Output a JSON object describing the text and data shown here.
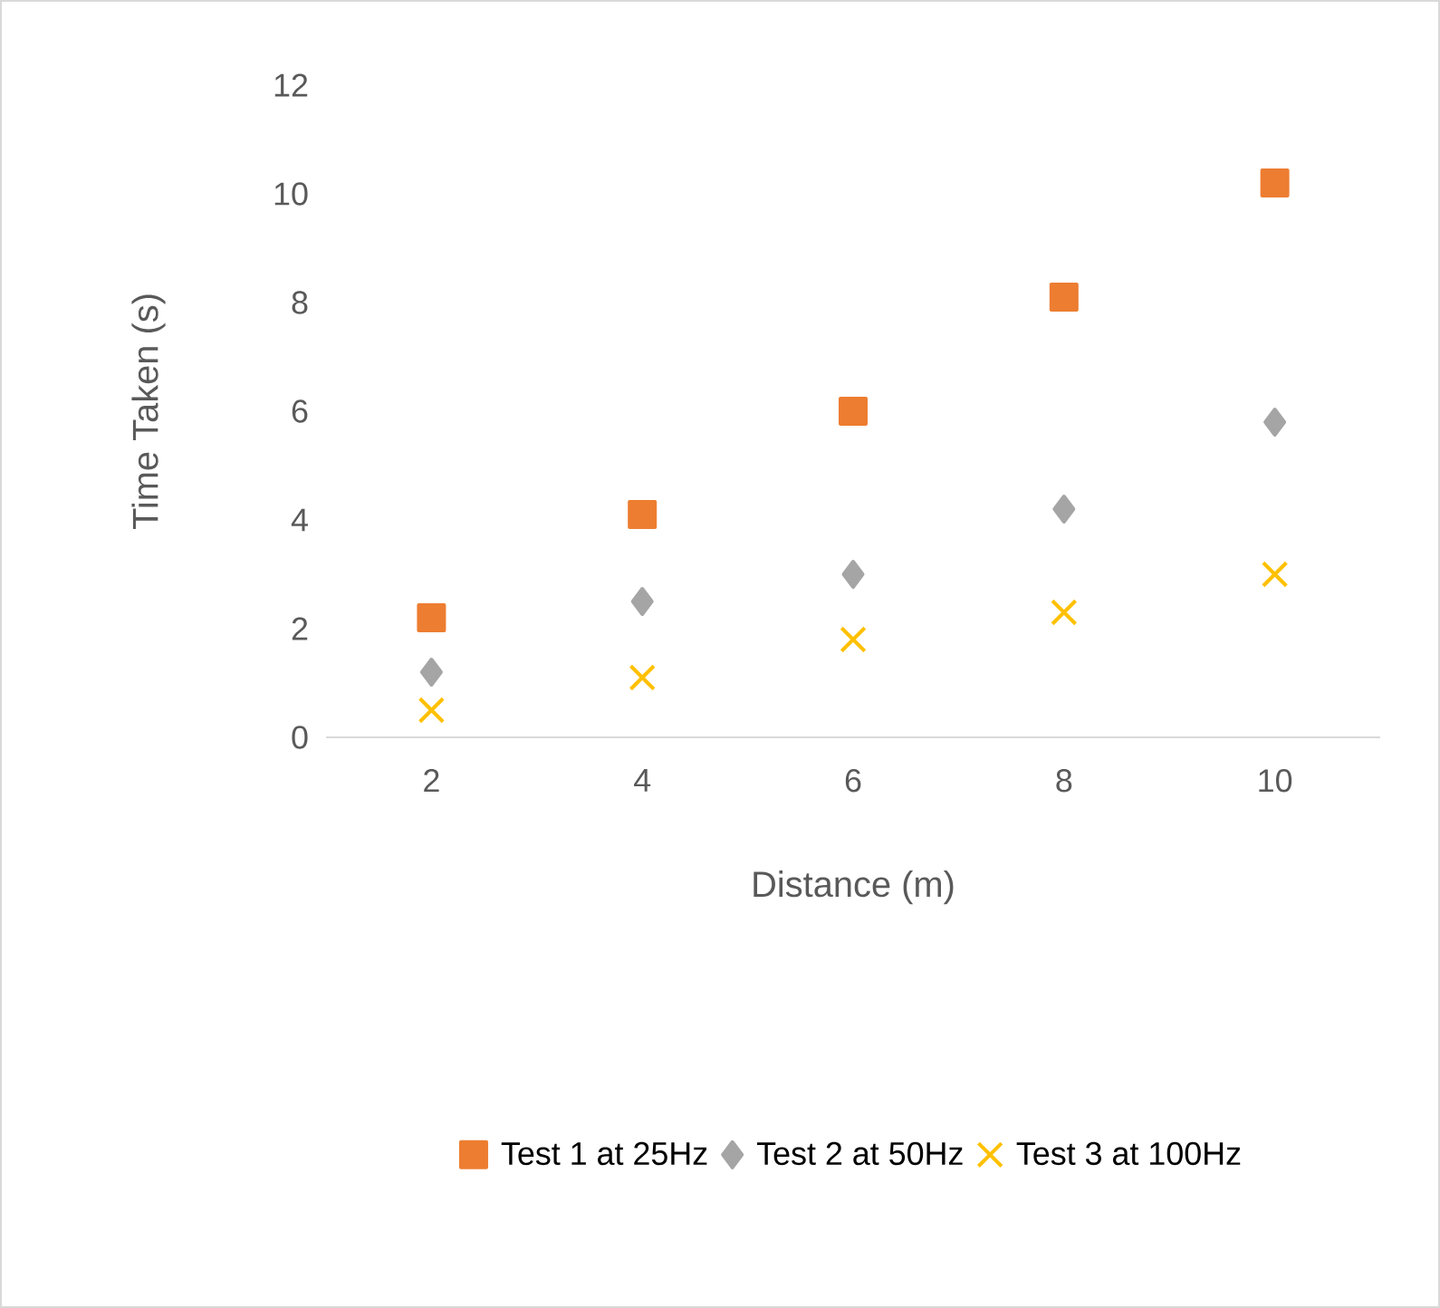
{
  "chart_data": {
    "type": "scatter",
    "xlabel": "Distance (m)",
    "ylabel": "Time Taken (s)",
    "x": [
      2,
      4,
      6,
      8,
      10
    ],
    "series": [
      {
        "name": "Test 1 at 25Hz",
        "color": "#ed7d31",
        "marker": "square",
        "values": [
          2.2,
          4.1,
          6.0,
          8.1,
          10.2
        ]
      },
      {
        "name": "Test 2 at 50Hz",
        "color": "#a5a5a5",
        "marker": "diamond",
        "values": [
          1.2,
          2.5,
          3.0,
          4.2,
          5.8
        ]
      },
      {
        "name": "Test 3 at 100Hz",
        "color": "#ffc000",
        "marker": "cross",
        "values": [
          0.5,
          1.1,
          1.8,
          2.3,
          3.0
        ]
      }
    ],
    "xlim": [
      1,
      11
    ],
    "ylim": [
      0,
      12
    ],
    "xticks": [
      2,
      4,
      6,
      8,
      10
    ],
    "yticks": [
      0,
      2,
      4,
      6,
      8,
      10,
      12
    ],
    "grid": false,
    "legend": "bottom"
  }
}
